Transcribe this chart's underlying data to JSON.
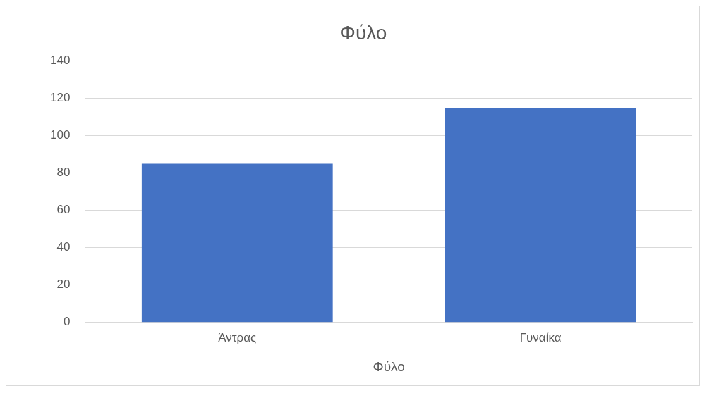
{
  "chart_data": {
    "type": "bar",
    "title": "Φύλο",
    "xlabel": "Φύλο",
    "categories": [
      "Άντρας",
      "Γυναίκα"
    ],
    "values": [
      85,
      115
    ],
    "color": "#4472c4",
    "ylim": [
      0,
      140
    ],
    "yticks": [
      0,
      20,
      40,
      60,
      80,
      100,
      120,
      140
    ],
    "grid": "y"
  }
}
